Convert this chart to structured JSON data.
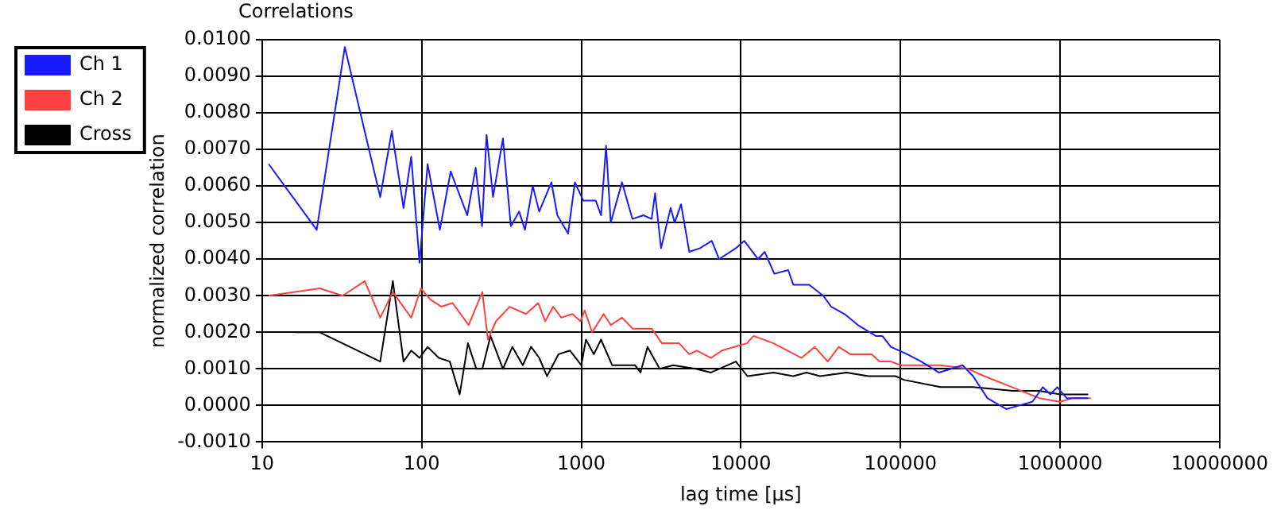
{
  "chart_data": {
    "type": "line",
    "title": "Correlations",
    "xlabel": "lag time [µs]",
    "ylabel": "normalized correlation",
    "log": "x",
    "grid": true,
    "legend": "top left",
    "marker": "none",
    "line_style": "solid",
    "xlim": [
      10,
      10000000
    ],
    "xticks": [
      10,
      100,
      1000,
      10000,
      100000,
      1000000,
      10000000
    ],
    "ylim": [
      -0.001,
      0.01
    ],
    "yticks": [
      {
        "value": -0.001,
        "label": "-0.0010"
      },
      {
        "value": 0,
        "label": "0.0000"
      },
      {
        "value": 0.001,
        "label": "0.0010"
      },
      {
        "value": 0.002,
        "label": "0.0020"
      },
      {
        "value": 0.003,
        "label": "0.0030"
      },
      {
        "value": 0.004,
        "label": "0.0040"
      },
      {
        "value": 0.005,
        "label": "0.0050"
      },
      {
        "value": 0.006,
        "label": "0.0060"
      },
      {
        "value": 0.007,
        "label": "0.0070"
      },
      {
        "value": 0.008,
        "label": "0.0080"
      },
      {
        "value": 0.009,
        "label": "0.0090"
      },
      {
        "value": 0.01,
        "label": "0.0100"
      }
    ],
    "series": [
      {
        "name": "Ch 1",
        "color": "#1a1aff",
        "x": [
          11,
          22,
          33,
          55,
          65,
          77,
          86,
          97,
          109,
          130,
          152,
          193,
          218,
          239,
          255,
          280,
          323,
          362,
          408,
          444,
          497,
          545,
          650,
          708,
          827,
          912,
          1030,
          1232,
          1330,
          1430,
          1530,
          1800,
          2090,
          2450,
          2760,
          2900,
          3160,
          3630,
          3850,
          4220,
          4750,
          5550,
          6570,
          7300,
          9300,
          10500,
          12800,
          14100,
          16200,
          19800,
          21300,
          26800,
          32800,
          36800,
          44600,
          54000,
          70000,
          77000,
          87000,
          110000,
          135000,
          174000,
          245000,
          285000,
          350000,
          460000,
          670000,
          780000,
          870000,
          960000,
          1100000,
          1500000
        ],
        "values": [
          0.0066,
          0.0048,
          0.0098,
          0.0057,
          0.0075,
          0.0054,
          0.0068,
          0.0039,
          0.0066,
          0.0048,
          0.0064,
          0.0052,
          0.0065,
          0.0049,
          0.0074,
          0.0057,
          0.0073,
          0.0049,
          0.0053,
          0.0048,
          0.006,
          0.0053,
          0.0061,
          0.0052,
          0.0047,
          0.0061,
          0.0056,
          0.0056,
          0.0052,
          0.0071,
          0.005,
          0.0061,
          0.0051,
          0.0052,
          0.0051,
          0.0058,
          0.0043,
          0.0054,
          0.005,
          0.0055,
          0.0042,
          0.0043,
          0.0045,
          0.004,
          0.0043,
          0.0045,
          0.004,
          0.0042,
          0.0036,
          0.0037,
          0.0033,
          0.0033,
          0.003,
          0.0027,
          0.0025,
          0.0022,
          0.0019,
          0.0019,
          0.0016,
          0.0014,
          0.0012,
          0.0009,
          0.0011,
          0.0008,
          0.0002,
          -0.0001,
          0.0001,
          0.0005,
          0.0003,
          0.0005,
          0.0002,
          0.0002
        ]
      },
      {
        "name": "Ch 2",
        "color": "#ff4040",
        "x": [
          11,
          23,
          32,
          44,
          55,
          66,
          86,
          99,
          113,
          133,
          156,
          197,
          240,
          260,
          292,
          356,
          450,
          537,
          594,
          667,
          750,
          880,
          990,
          1050,
          1170,
          1380,
          1530,
          1800,
          2100,
          2760,
          3200,
          4100,
          4750,
          5300,
          6500,
          7600,
          10900,
          12000,
          16000,
          24000,
          29000,
          35000,
          41000,
          48500,
          66000,
          74000,
          87000,
          100000,
          127000,
          178000,
          265000,
          335000,
          500000,
          740000,
          1000000,
          1200000,
          1560000
        ],
        "values": [
          0.003,
          0.0032,
          0.003,
          0.0034,
          0.0024,
          0.0031,
          0.0024,
          0.0032,
          0.0029,
          0.0027,
          0.0028,
          0.0022,
          0.0031,
          0.0018,
          0.0023,
          0.0027,
          0.0025,
          0.0028,
          0.0023,
          0.0027,
          0.0024,
          0.0025,
          0.0023,
          0.0026,
          0.002,
          0.0025,
          0.0022,
          0.0024,
          0.0021,
          0.0021,
          0.0017,
          0.0017,
          0.0014,
          0.0015,
          0.0013,
          0.0015,
          0.0017,
          0.0019,
          0.0017,
          0.0013,
          0.0016,
          0.0012,
          0.0016,
          0.0014,
          0.0014,
          0.0012,
          0.0012,
          0.0011,
          0.0011,
          0.0011,
          0.001,
          0.0008,
          0.0005,
          0.0002,
          0.0001,
          0.0002,
          0.0002
        ]
      },
      {
        "name": "Cross",
        "color": "#000000",
        "x": [
          16,
          23,
          55,
          66,
          77,
          86,
          97,
          109,
          128,
          150,
          173,
          195,
          220,
          240,
          270,
          323,
          370,
          430,
          485,
          545,
          610,
          720,
          850,
          1000,
          1070,
          1200,
          1330,
          1560,
          1830,
          2170,
          2350,
          2600,
          3100,
          3770,
          5200,
          6500,
          9300,
          11000,
          16000,
          21300,
          25800,
          31300,
          46000,
          63000,
          93000,
          105000,
          178000,
          285000,
          500000,
          740000,
          1000000,
          1500000
        ],
        "values": [
          0.002,
          0.002,
          0.0012,
          0.0034,
          0.0012,
          0.0015,
          0.0013,
          0.0016,
          0.0013,
          0.0012,
          0.0003,
          0.0017,
          0.001,
          0.001,
          0.0019,
          0.001,
          0.0016,
          0.0011,
          0.0016,
          0.0013,
          0.0008,
          0.0014,
          0.0015,
          0.0011,
          0.0018,
          0.0014,
          0.0018,
          0.0011,
          0.0011,
          0.0011,
          0.0009,
          0.0016,
          0.001,
          0.0011,
          0.001,
          0.0009,
          0.0012,
          0.0008,
          0.0009,
          0.0008,
          0.0009,
          0.0008,
          0.0009,
          0.0008,
          0.0008,
          0.0007,
          0.0005,
          0.0005,
          0.0004,
          0.0004,
          0.0003,
          0.0003
        ]
      }
    ]
  }
}
